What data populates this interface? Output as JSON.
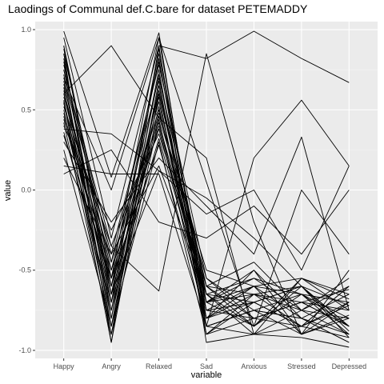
{
  "chart_data": {
    "type": "line",
    "title": "Laodings of Communal def.C.bare for dataset PETEMADDY",
    "xlabel": "variable",
    "ylabel": "value",
    "ylim": [
      -1.05,
      1.05
    ],
    "y_ticks": [
      1.0,
      0.5,
      0.0,
      -0.5,
      -1.0
    ],
    "y_tick_labels": [
      "1.0",
      "0.5",
      "0.0",
      "-0.5",
      "-1.0"
    ],
    "categories": [
      "Happy",
      "Angry",
      "Relaxed",
      "Sad",
      "Anxious",
      "Stressed",
      "Depressed"
    ],
    "grid": true,
    "legend": "none",
    "colors": {
      "panel": "#ebebeb",
      "grid_major": "#ffffff",
      "grid_minor": "#f5f5f5",
      "line": "#000000"
    },
    "series": [
      {
        "values": [
          0.99,
          0.08,
          0.98,
          -0.85,
          -0.75,
          -0.8,
          -0.95
        ]
      },
      {
        "values": [
          0.95,
          -0.3,
          0.9,
          0.82,
          0.99,
          0.82,
          0.67
        ]
      },
      {
        "values": [
          0.9,
          -0.55,
          0.95,
          -0.8,
          -0.6,
          -0.9,
          -0.7
        ]
      },
      {
        "values": [
          0.88,
          -0.6,
          0.85,
          -0.7,
          -0.85,
          -0.65,
          -0.8
        ]
      },
      {
        "values": [
          0.85,
          -0.45,
          0.8,
          -0.65,
          -0.55,
          -0.75,
          -0.9
        ]
      },
      {
        "values": [
          0.82,
          -0.8,
          0.75,
          -0.9,
          -0.7,
          -0.6,
          -0.85
        ]
      },
      {
        "values": [
          0.8,
          -0.7,
          0.88,
          -0.75,
          -0.8,
          -0.85,
          -0.6
        ]
      },
      {
        "values": [
          0.78,
          -0.5,
          0.7,
          -0.6,
          -0.65,
          -0.7,
          -0.75
        ]
      },
      {
        "values": [
          0.75,
          -0.65,
          0.82,
          -0.85,
          -0.9,
          -0.55,
          -0.65
        ]
      },
      {
        "values": [
          0.72,
          -0.85,
          0.65,
          -0.7,
          -0.6,
          -0.8,
          -0.95
        ]
      },
      {
        "values": [
          0.7,
          -0.4,
          0.78,
          -0.55,
          -0.75,
          -0.65,
          -0.7
        ]
      },
      {
        "values": [
          0.68,
          -0.75,
          0.72,
          -0.8,
          -0.5,
          -0.9,
          -0.8
        ]
      },
      {
        "values": [
          0.66,
          -0.6,
          0.6,
          -0.65,
          -0.85,
          -0.6,
          -0.88
        ]
      },
      {
        "values": [
          0.64,
          -0.9,
          0.68,
          -0.9,
          -0.65,
          -0.75,
          -0.6
        ]
      },
      {
        "values": [
          0.62,
          -0.55,
          0.55,
          -0.75,
          -0.7,
          -0.85,
          -0.72
        ]
      },
      {
        "values": [
          0.6,
          0.9,
          0.45,
          0.2,
          -0.9,
          -0.92,
          -0.98
        ]
      },
      {
        "values": [
          0.6,
          -0.7,
          0.62,
          -0.6,
          -0.8,
          -0.7,
          -0.85
        ]
      },
      {
        "values": [
          0.58,
          -0.45,
          0.5,
          -0.7,
          -0.55,
          -0.65,
          -0.9
        ]
      },
      {
        "values": [
          0.56,
          -0.8,
          0.58,
          -0.85,
          -0.75,
          -0.8,
          -0.65
        ]
      },
      {
        "values": [
          0.54,
          -0.65,
          0.48,
          -0.5,
          -0.6,
          -0.55,
          -0.75
        ]
      },
      {
        "values": [
          0.52,
          -0.35,
          0.42,
          -0.65,
          -0.9,
          -0.75,
          -0.8
        ]
      },
      {
        "values": [
          0.5,
          -0.85,
          0.52,
          -0.8,
          -0.7,
          -0.6,
          -0.92
        ]
      },
      {
        "values": [
          0.48,
          -0.6,
          0.4,
          -0.7,
          -0.65,
          -0.85,
          -0.7
        ]
      },
      {
        "values": [
          0.46,
          -0.75,
          0.46,
          -0.55,
          -0.8,
          -0.7,
          -0.62
        ]
      },
      {
        "values": [
          0.44,
          -0.5,
          0.38,
          -0.75,
          -0.6,
          -0.65,
          -0.85
        ]
      },
      {
        "values": [
          0.42,
          -0.9,
          0.44,
          -0.85,
          -0.75,
          -0.9,
          -0.78
        ]
      },
      {
        "values": [
          0.4,
          -0.25,
          0.35,
          -0.6,
          -0.85,
          -0.55,
          -0.68
        ]
      },
      {
        "values": [
          0.38,
          0.35,
          0.12,
          -0.15,
          0.0,
          -0.5,
          0.15
        ]
      },
      {
        "values": [
          0.36,
          -0.7,
          0.32,
          -0.7,
          -0.5,
          -0.8,
          -0.9
        ]
      },
      {
        "values": [
          0.34,
          -0.55,
          0.28,
          -0.8,
          -0.65,
          -0.6,
          -0.72
        ]
      },
      {
        "values": [
          0.3,
          -0.2,
          0.2,
          -0.1,
          -0.4,
          0.33,
          -0.75
        ]
      },
      {
        "values": [
          0.25,
          -0.85,
          0.3,
          -0.9,
          -0.8,
          -0.7,
          -0.85
        ]
      },
      {
        "values": [
          0.2,
          -0.4,
          0.15,
          -0.65,
          -0.7,
          -0.85,
          -0.6
        ]
      },
      {
        "values": [
          0.15,
          0.1,
          0.1,
          -0.85,
          0.2,
          0.56,
          0.15
        ]
      },
      {
        "values": [
          0.1,
          0.25,
          -0.2,
          -0.3,
          -0.1,
          -0.4,
          0.0
        ]
      },
      {
        "values": [
          0.75,
          -0.35,
          -0.63,
          0.85,
          -0.2,
          -0.9,
          -0.5
        ]
      },
      {
        "values": [
          0.85,
          -0.95,
          0.9,
          -0.95,
          -0.9,
          -0.85,
          -0.92
        ]
      },
      {
        "values": [
          0.7,
          0.0,
          0.95,
          0.05,
          -0.85,
          0.0,
          -0.4
        ]
      },
      {
        "values": [
          0.9,
          -0.65,
          0.12,
          -0.05,
          -0.3,
          -0.6,
          -0.85
        ]
      },
      {
        "values": [
          0.55,
          -0.95,
          0.6,
          -0.6,
          -0.45,
          -0.75,
          -0.55
        ]
      }
    ]
  }
}
